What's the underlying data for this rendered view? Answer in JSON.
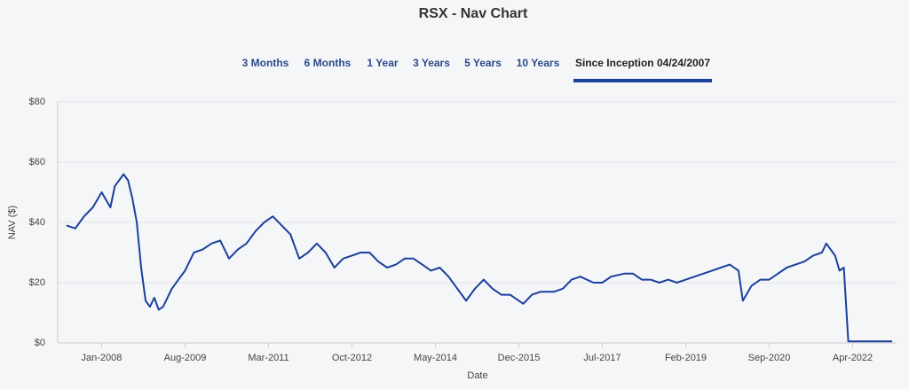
{
  "tabs": [
    "3 Months",
    "6 Months",
    "1 Year",
    "3 Years",
    "5 Years",
    "10 Years",
    "Since Inception 04/24/2007"
  ],
  "active_tab": 6,
  "chart_data": {
    "type": "line",
    "title": "RSX - Nav Chart",
    "x_label": "Date",
    "y_label": "NAV ($)",
    "xlim": [
      "2007-03",
      "2023-02"
    ],
    "xticks": [
      {
        "value": "2008-01",
        "label": "Jan-2008"
      },
      {
        "value": "2009-08",
        "label": "Aug-2009"
      },
      {
        "value": "2011-03",
        "label": "Mar-2011"
      },
      {
        "value": "2012-10",
        "label": "Oct-2012"
      },
      {
        "value": "2014-05",
        "label": "May-2014"
      },
      {
        "value": "2015-12",
        "label": "Dec-2015"
      },
      {
        "value": "2017-07",
        "label": "Jul-2017"
      },
      {
        "value": "2019-02",
        "label": "Feb-2019"
      },
      {
        "value": "2020-09",
        "label": "Sep-2020"
      },
      {
        "value": "2022-04",
        "label": "Apr-2022"
      }
    ],
    "ylim": [
      0,
      80
    ],
    "yticks": [
      {
        "value": 0,
        "label": "$0"
      },
      {
        "value": 20,
        "label": "$20"
      },
      {
        "value": 40,
        "label": "$40"
      },
      {
        "value": 60,
        "label": "$60"
      },
      {
        "value": 80,
        "label": "$80"
      }
    ],
    "grid": true,
    "color": "#1c3f9e",
    "x": [
      "2007-05",
      "2007-07",
      "2007-09",
      "2007-11",
      "2008-01",
      "2008-03",
      "2008-04",
      "2008-06",
      "2008-07",
      "2008-08",
      "2008-09",
      "2008-10",
      "2008-11",
      "2008-12",
      "2009-01",
      "2009-02",
      "2009-03",
      "2009-05",
      "2009-07",
      "2009-08",
      "2009-10",
      "2009-12",
      "2010-02",
      "2010-04",
      "2010-06",
      "2010-08",
      "2010-10",
      "2010-12",
      "2011-02",
      "2011-04",
      "2011-06",
      "2011-08",
      "2011-10",
      "2011-12",
      "2012-02",
      "2012-04",
      "2012-06",
      "2012-08",
      "2012-10",
      "2012-12",
      "2013-02",
      "2013-04",
      "2013-06",
      "2013-08",
      "2013-10",
      "2013-12",
      "2014-02",
      "2014-04",
      "2014-06",
      "2014-08",
      "2014-10",
      "2014-12",
      "2015-02",
      "2015-04",
      "2015-06",
      "2015-08",
      "2015-10",
      "2015-12",
      "2016-01",
      "2016-03",
      "2016-05",
      "2016-08",
      "2016-10",
      "2016-12",
      "2017-02",
      "2017-05",
      "2017-07",
      "2017-09",
      "2017-12",
      "2018-02",
      "2018-04",
      "2018-06",
      "2018-08",
      "2018-10",
      "2018-12",
      "2019-02",
      "2019-04",
      "2019-06",
      "2019-08",
      "2019-10",
      "2019-12",
      "2020-02",
      "2020-03",
      "2020-05",
      "2020-07",
      "2020-09",
      "2020-11",
      "2021-01",
      "2021-03",
      "2021-05",
      "2021-07",
      "2021-09",
      "2021-10",
      "2021-12",
      "2022-01",
      "2022-02",
      "2022-03",
      "2022-05",
      "2022-08",
      "2022-11",
      "2023-01"
    ],
    "values": [
      39,
      38,
      42,
      45,
      50,
      45,
      52,
      56,
      54,
      48,
      40,
      25,
      14,
      12,
      15,
      11,
      12,
      18,
      22,
      24,
      30,
      31,
      33,
      34,
      28,
      31,
      33,
      37,
      40,
      42,
      39,
      36,
      28,
      30,
      33,
      30,
      25,
      28,
      29,
      30,
      30,
      27,
      25,
      26,
      28,
      28,
      26,
      24,
      25,
      22,
      18,
      14,
      18,
      21,
      18,
      16,
      16,
      14,
      13,
      16,
      17,
      17,
      18,
      21,
      22,
      20,
      20,
      22,
      23,
      23,
      21,
      21,
      20,
      21,
      20,
      21,
      22,
      23,
      24,
      25,
      26,
      24,
      14,
      19,
      21,
      21,
      23,
      25,
      26,
      27,
      29,
      30,
      33,
      29,
      24,
      25,
      0.5,
      0.5,
      0.5,
      0.5,
      0.5
    ]
  }
}
